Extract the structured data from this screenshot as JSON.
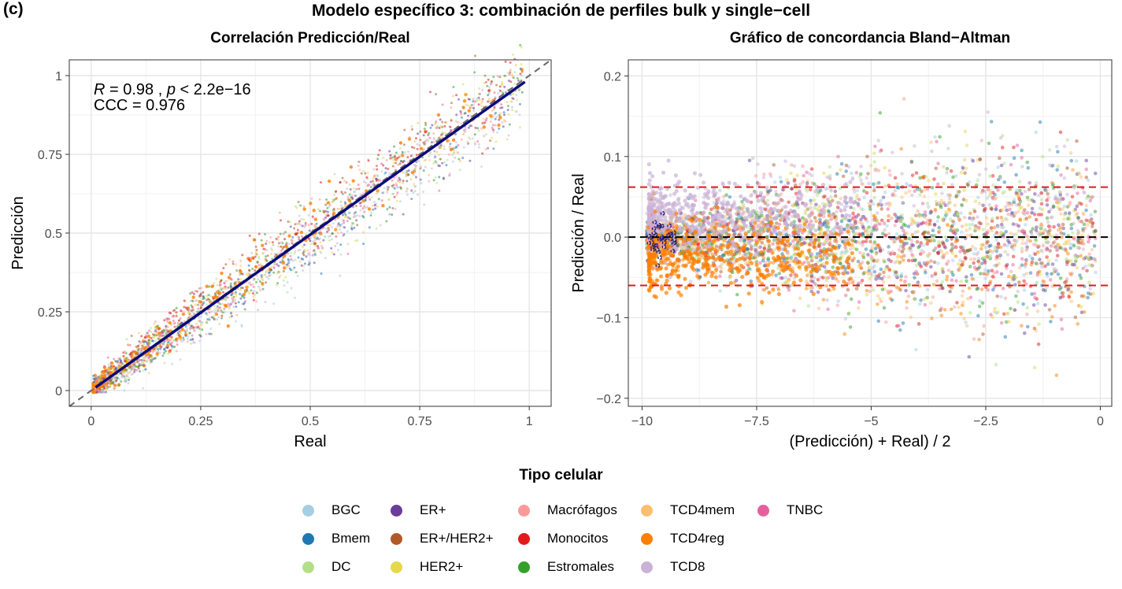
{
  "panel_label": "(c)",
  "main_title": "Modelo específico 3: combinación de perfiles bulk y single−cell",
  "legend": {
    "title": "Tipo celular",
    "items": [
      {
        "label": "BGC",
        "color": "#A6CEE3"
      },
      {
        "label": "Bmem",
        "color": "#1F78B4"
      },
      {
        "label": "DC",
        "color": "#B2DF8A"
      },
      {
        "label": "ER+",
        "color": "#6A3D9A"
      },
      {
        "label": "ER+/HER2+",
        "color": "#B15928"
      },
      {
        "label": "HER2+",
        "color": "#E5D84A"
      },
      {
        "label": "Macrófagos",
        "color": "#FB9A99"
      },
      {
        "label": "Monocitos",
        "color": "#E31A1C"
      },
      {
        "label": "Estromales",
        "color": "#33A02C"
      },
      {
        "label": "TCD4mem",
        "color": "#FDBF6F"
      },
      {
        "label": "TCD4reg",
        "color": "#FF7F00"
      },
      {
        "label": "TCD8",
        "color": "#CAB2D6"
      },
      {
        "label": "TNBC",
        "color": "#E7609E"
      }
    ]
  },
  "chart_data": [
    {
      "type": "scatter",
      "title": "Correlación Predicción/Real",
      "xlabel": "Real",
      "ylabel": "Predicción",
      "xlim": [
        -0.05,
        1.05
      ],
      "ylim": [
        -0.05,
        1.05
      ],
      "x_ticks": [
        0,
        0.25,
        0.5,
        0.75,
        1
      ],
      "x_tick_labels": [
        "0",
        "0.25",
        "0.5",
        "0.75",
        "1"
      ],
      "y_ticks": [
        0,
        0.25,
        0.5,
        0.75,
        1
      ],
      "y_tick_labels": [
        "0",
        "0.25",
        "0.5",
        "0.75",
        "1"
      ],
      "grid": true,
      "annotations": {
        "r_label": "R",
        "r_rest": " = 0.98 , ",
        "p_label": "p",
        "p_rest": " < 2.2e−16",
        "ccc": "CCC = 0.976"
      },
      "identity_line": {
        "style": "dashed",
        "color": "#666666"
      },
      "fit_line": {
        "x": [
          0.01,
          0.99
        ],
        "y": [
          0.01,
          0.98
        ],
        "color": "#0B0B7A"
      }
    },
    {
      "type": "scatter",
      "title": "Gráfico de concordancia Bland−Altman",
      "xlabel": "(Predicción) + Real) / 2",
      "ylabel": "Predicción / Real",
      "xlim": [
        -10.3,
        0.25
      ],
      "ylim": [
        -0.21,
        0.22
      ],
      "x_ticks": [
        -10,
        -7.5,
        -5,
        -2.5,
        0
      ],
      "x_tick_labels": [
        "−10",
        "−7.5",
        "−5",
        "−2.5",
        "0"
      ],
      "y_ticks": [
        -0.2,
        -0.1,
        0,
        0.1,
        0.2
      ],
      "y_tick_labels": [
        "−0.2",
        "−0.1",
        "0.0",
        "0.1",
        "0.2"
      ],
      "grid": true,
      "mean_line": {
        "y": 0.0,
        "color": "#000000",
        "style": "dashed"
      },
      "limits_of_agreement": {
        "upper": 0.062,
        "lower": -0.06,
        "color": "#E31A1C",
        "style": "dashed"
      }
    }
  ]
}
